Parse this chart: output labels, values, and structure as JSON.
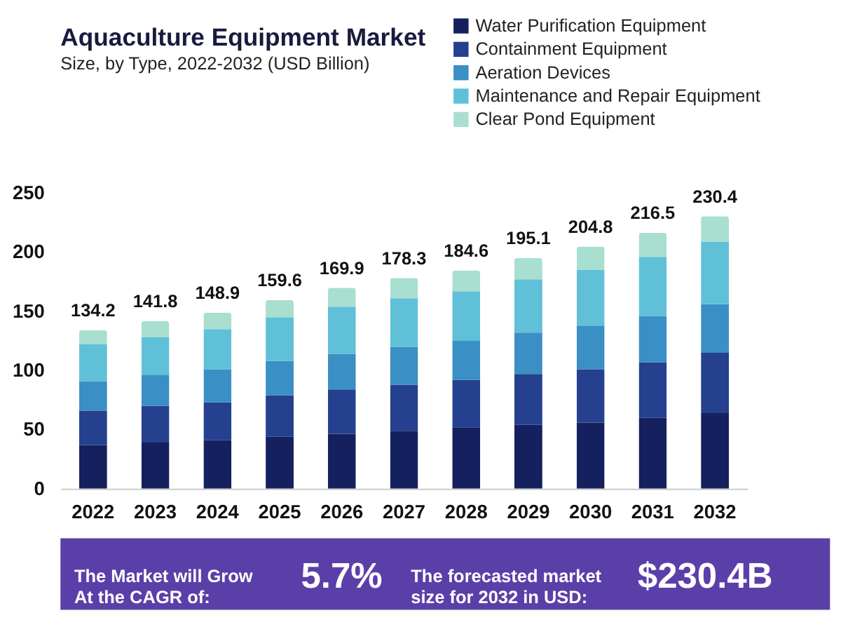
{
  "chart_data": {
    "type": "bar",
    "title": "Aquaculture Equipment Market",
    "subtitle": "Size, by Type, 2022-2032 (USD Billion)",
    "categories": [
      "2022",
      "2023",
      "2024",
      "2025",
      "2026",
      "2027",
      "2028",
      "2029",
      "2030",
      "2031",
      "2032"
    ],
    "stacked": true,
    "series": [
      {
        "name": "Water Purification Equipment",
        "color": "#15205f",
        "values": [
          37,
          39,
          41,
          44,
          46.5,
          49,
          52,
          54,
          56,
          60,
          64
        ]
      },
      {
        "name": "Containment Equipment",
        "color": "#24408f",
        "values": [
          29,
          31,
          32,
          35,
          37.5,
          39,
          40,
          43,
          45,
          47,
          51
        ]
      },
      {
        "name": "Aeration Devices",
        "color": "#3a8fc4",
        "values": [
          25,
          26,
          28,
          29,
          30,
          32,
          33,
          35,
          37,
          39,
          41
        ]
      },
      {
        "name": "Maintenance and Repair Equipment",
        "color": "#5fc0d8",
        "values": [
          31,
          32,
          34,
          37,
          40,
          41,
          42,
          45,
          47,
          50,
          53
        ]
      },
      {
        "name": "Clear Pond Equipment",
        "color": "#a9dfd0",
        "values": [
          12.2,
          13.8,
          13.9,
          14.6,
          15.9,
          17.3,
          17.6,
          18.1,
          19.8,
          20.5,
          21.4
        ]
      }
    ],
    "totals": [
      "134.2",
      "141.8",
      "148.9",
      "159.6",
      "169.9",
      "178.3",
      "184.6",
      "195.1",
      "204.8",
      "216.5",
      "230.4"
    ],
    "ylim": [
      0,
      250
    ],
    "yticks": [
      0,
      50,
      100,
      150,
      200,
      250
    ],
    "grid": false,
    "legend": "top right",
    "annotations": [
      "The Market will Grow At the CAGR of:",
      "5.7%",
      "The forecasted market size for 2032 in USD:",
      "$230.4B"
    ]
  }
}
